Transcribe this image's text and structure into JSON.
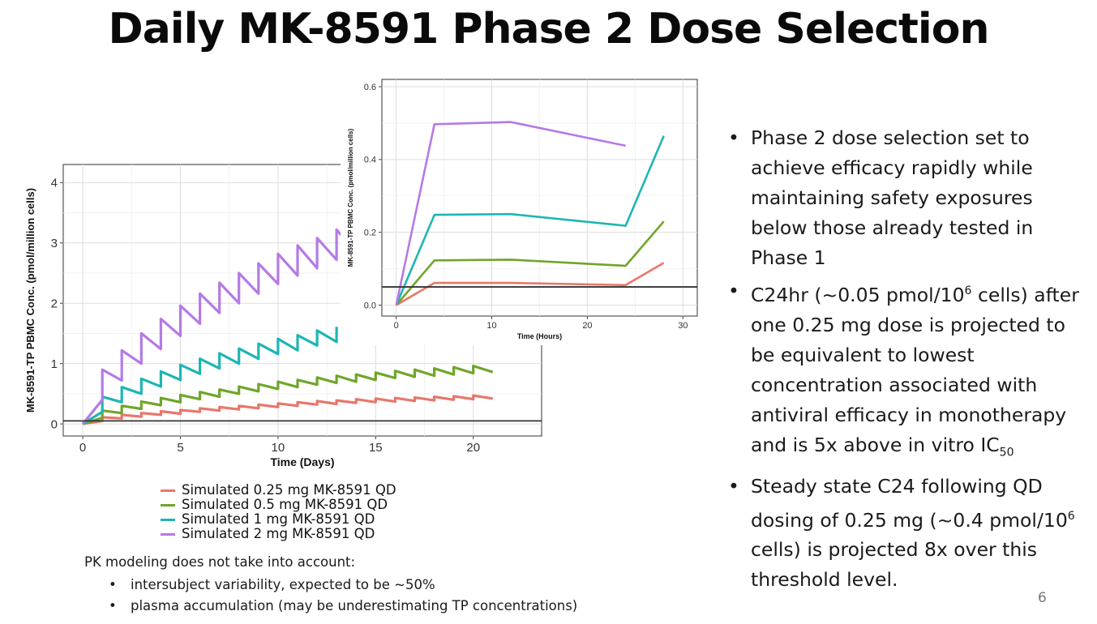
{
  "slide": {
    "title": "Daily MK-8591 Phase 2 Dose Selection",
    "page_number": "6"
  },
  "bullets": [
    {
      "pre": "Phase 2 dose selection set to achieve efficacy rapidly while maintaining  safety exposures below those already tested in Phase 1",
      "sup": "",
      "mid": "",
      "sub": "",
      "post": ""
    },
    {
      "pre": "C24hr (~0.05 pmol/10",
      "sup": "6",
      "mid": " cells) after one 0.25 mg dose is projected to be equivalent to lowest concentration associated with antiviral efficacy in monotherapy and is 5x above in vitro IC",
      "sub": "50",
      "post": ""
    },
    {
      "pre": "Steady state C24 following QD dosing of 0.25 mg (~0.4 pmol/10",
      "sup": "6",
      "mid": " cells) is projected 8x over this threshold level.",
      "sub": "",
      "post": ""
    }
  ],
  "notes": {
    "heading": "PK modeling does not take into account:",
    "items": [
      "intersubject variability, expected to be ~50%",
      "plasma accumulation (may be underestimating TP concentrations)"
    ]
  },
  "legend": [
    {
      "label": "Simulated 0.25 mg MK-8591 QD",
      "color": "#e8776b"
    },
    {
      "label": "Simulated 0.5 mg MK-8591 QD",
      "color": "#6fa62a"
    },
    {
      "label": "Simulated 1 mg MK-8591 QD",
      "color": "#1fb5b5"
    },
    {
      "label": "Simulated 2 mg MK-8591 QD",
      "color": "#b57ae6"
    }
  ],
  "chart_data": [
    {
      "type": "line",
      "xlabel": "Time (Days)",
      "ylabel": "MK-8591-TP PBMC Conc. (pmol/million cells)",
      "xlim": [
        -1,
        23.5
      ],
      "ylim": [
        -0.2,
        4.3
      ],
      "x_ticks": [
        0,
        5,
        10,
        15,
        20
      ],
      "y_ticks": [
        0,
        1,
        2,
        3,
        4
      ],
      "threshold": 0.05,
      "grid": true,
      "series": [
        {
          "name": "Simulated 0.25 mg MK-8591 QD",
          "color": "#e8776b",
          "dose_jump": 0.06,
          "c24": [
            0.05,
            0.09,
            0.12,
            0.15,
            0.17,
            0.2,
            0.22,
            0.24,
            0.26,
            0.28,
            0.3,
            0.32,
            0.33,
            0.35,
            0.36,
            0.37,
            0.38,
            0.39,
            0.4,
            0.41,
            0.42
          ]
        },
        {
          "name": "Simulated 0.5 mg MK-8591 QD",
          "color": "#6fa62a",
          "dose_jump": 0.12,
          "c24": [
            0.1,
            0.18,
            0.25,
            0.31,
            0.36,
            0.41,
            0.45,
            0.5,
            0.54,
            0.58,
            0.61,
            0.65,
            0.68,
            0.7,
            0.73,
            0.76,
            0.78,
            0.8,
            0.82,
            0.84,
            0.86
          ]
        },
        {
          "name": "Simulated 1 mg MK-8591 QD",
          "color": "#1fb5b5",
          "dose_jump": 0.25,
          "c24": [
            0.2,
            0.36,
            0.5,
            0.62,
            0.73,
            0.83,
            0.92,
            1.0,
            1.08,
            1.16,
            1.22,
            1.3,
            1.36
          ]
        },
        {
          "name": "Simulated 2 mg MK-8591 QD",
          "color": "#b57ae6",
          "dose_jump": 0.5,
          "c24": [
            0.4,
            0.72,
            1.0,
            1.24,
            1.46,
            1.66,
            1.84,
            2.0,
            2.16,
            2.32,
            2.46,
            2.58,
            2.72,
            2.84,
            2.95,
            3.05,
            3.15,
            3.25,
            3.35,
            3.42,
            3.48
          ]
        }
      ]
    },
    {
      "type": "line",
      "xlabel": "Time (Hours)",
      "ylabel": "MK-8591-TP PBMC Conc. (pmol/million cells)",
      "xlim": [
        -1.5,
        31.5
      ],
      "ylim": [
        -0.03,
        0.62
      ],
      "x_ticks": [
        0,
        10,
        20,
        30
      ],
      "y_ticks": [
        0.0,
        0.2,
        0.4,
        0.6
      ],
      "threshold": 0.05,
      "grid": true,
      "x": [
        0,
        4,
        12,
        24,
        28
      ],
      "series": [
        {
          "name": "Simulated 0.25 mg MK-8591 QD",
          "color": "#e8776b",
          "values": [
            0.0,
            0.061,
            0.061,
            0.055,
            0.116
          ]
        },
        {
          "name": "Simulated 0.5 mg MK-8591 QD",
          "color": "#6fa62a",
          "values": [
            0.0,
            0.123,
            0.125,
            0.108,
            0.23
          ]
        },
        {
          "name": "Simulated 1 mg MK-8591 QD",
          "color": "#1fb5b5",
          "values": [
            0.0,
            0.248,
            0.25,
            0.218,
            0.465
          ]
        },
        {
          "name": "Simulated 2 mg MK-8591 QD",
          "color": "#b57ae6",
          "values": [
            0.0,
            0.497,
            0.503,
            0.438,
            null
          ]
        }
      ]
    }
  ]
}
